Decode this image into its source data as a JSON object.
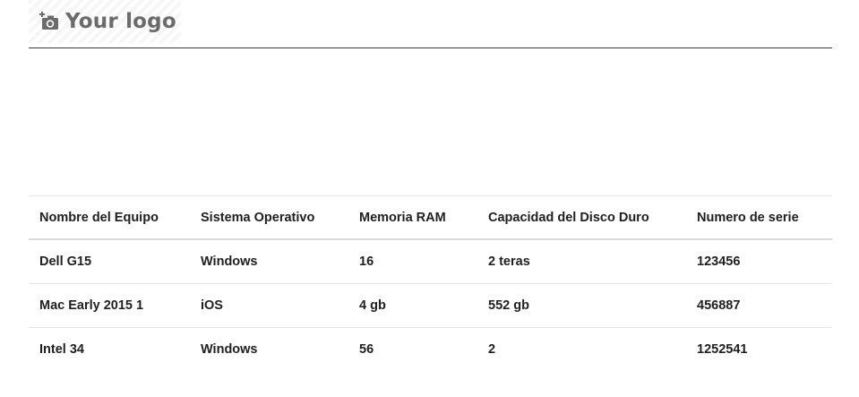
{
  "header": {
    "logo_text": "Your logo",
    "logo_icon": "camera-add-icon"
  },
  "table": {
    "columns": [
      "Nombre del Equipo",
      "Sistema Operativo",
      "Memoria RAM",
      "Capacidad del Disco Duro",
      "Numero de serie"
    ],
    "rows": [
      [
        "Dell G15",
        "Windows",
        "16",
        "2 teras",
        "123456"
      ],
      [
        "Mac Early 2015 1",
        "iOS",
        "4 gb",
        "552 gb",
        "456887"
      ],
      [
        "Intel 34",
        "Windows",
        "56",
        "2",
        "1252541"
      ]
    ]
  },
  "colors": {
    "header_rule": "#3a3a3a",
    "row_divider": "#e6e6e6",
    "logo_text": "#6b6b6b"
  }
}
